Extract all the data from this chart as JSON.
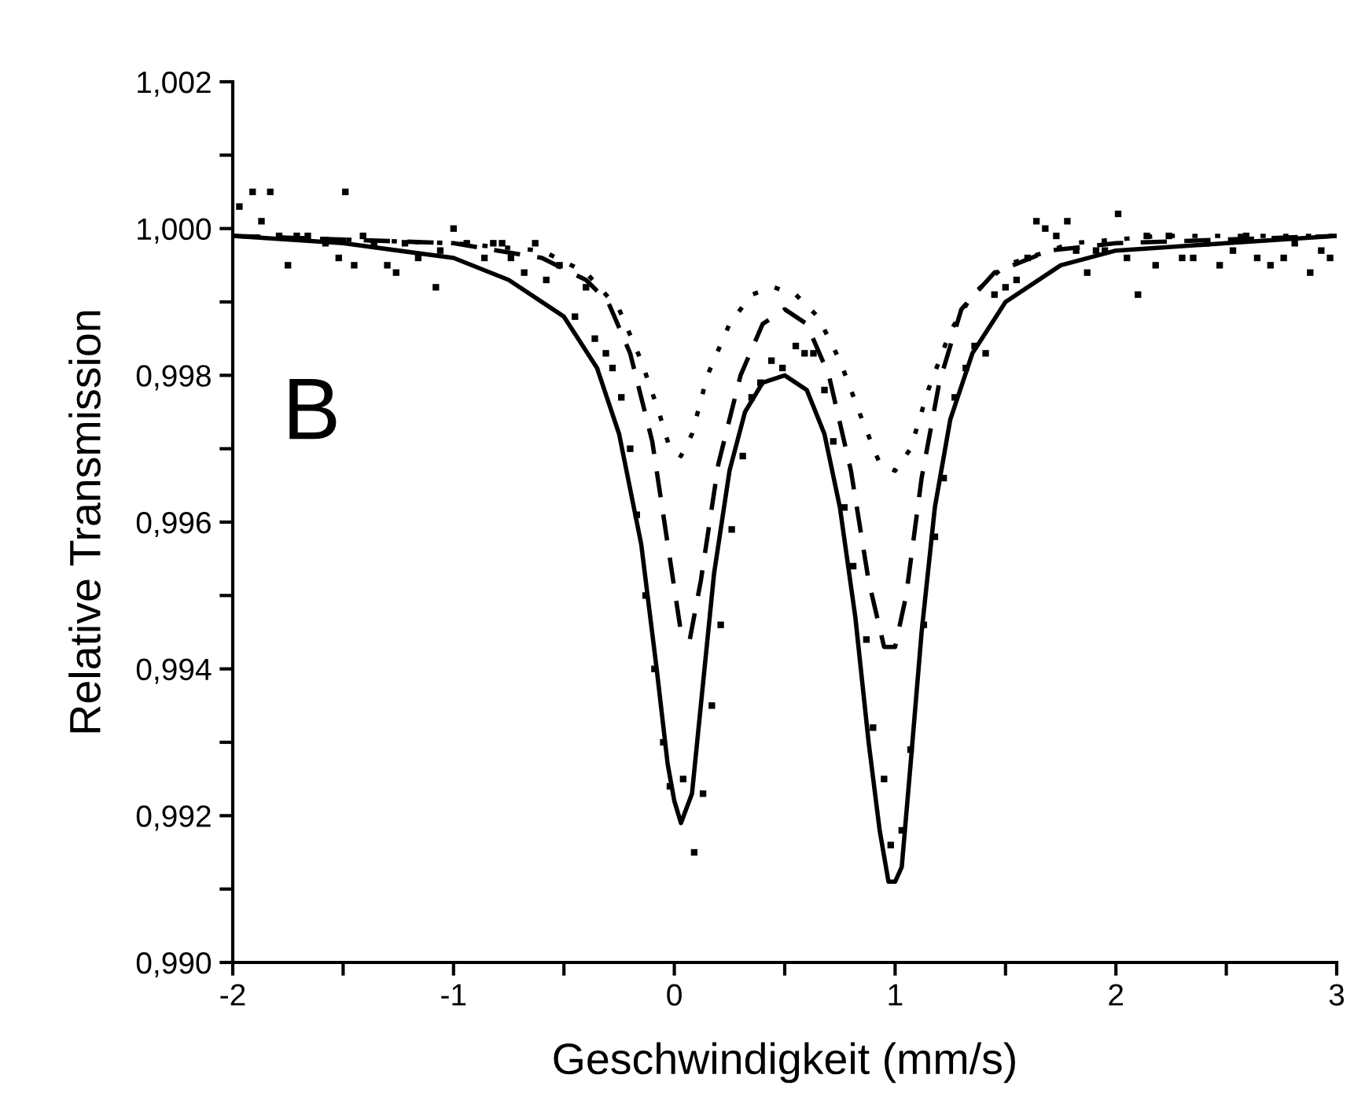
{
  "chart_data": {
    "type": "line",
    "xlabel": "Geschwindigkeit (mm/s)",
    "ylabel": "Relative Transmission",
    "annotations": [
      "B"
    ],
    "xlim": [
      -2,
      3
    ],
    "ylim": [
      0.99,
      1.002
    ],
    "xticks": [
      -2,
      {
        "value": -1.5,
        "label": null
      },
      -1,
      {
        "value": -0.5,
        "label": null
      },
      0,
      {
        "value": 0.5,
        "label": null
      },
      1,
      {
        "value": 1.5,
        "label": null
      },
      2,
      {
        "value": 2.5,
        "label": null
      },
      3
    ],
    "yticks": [
      {
        "value": 0.99,
        "label": "0,990"
      },
      {
        "value": 0.991,
        "label": null
      },
      {
        "value": 0.992,
        "label": "0,992"
      },
      {
        "value": 0.993,
        "label": null
      },
      {
        "value": 0.994,
        "label": "0,994"
      },
      {
        "value": 0.995,
        "label": null
      },
      {
        "value": 0.996,
        "label": "0,996"
      },
      {
        "value": 0.997,
        "label": null
      },
      {
        "value": 0.998,
        "label": "0,998"
      },
      {
        "value": 0.999,
        "label": null
      },
      {
        "value": 1.0,
        "label": "1,000"
      },
      {
        "value": 1.001,
        "label": null
      },
      {
        "value": 1.002,
        "label": "1,002"
      }
    ],
    "grid": false,
    "legend": false,
    "series": [
      {
        "type": "scatter",
        "marker": "square",
        "color": "#000000",
        "x": [
          -1.97,
          -1.91,
          -1.87,
          -1.83,
          -1.79,
          -1.75,
          -1.71,
          -1.66,
          -1.58,
          -1.52,
          -1.49,
          -1.45,
          -1.41,
          -1.36,
          -1.3,
          -1.26,
          -1.22,
          -1.16,
          -1.08,
          -1.06,
          -1.0,
          -0.94,
          -0.86,
          -0.82,
          -0.78,
          -0.74,
          -0.68,
          -0.63,
          -0.58,
          -0.52,
          -0.45,
          -0.4,
          -0.36,
          -0.31,
          -0.28,
          -0.24,
          -0.2,
          -0.17,
          -0.13,
          -0.09,
          -0.05,
          -0.02,
          0.04,
          0.09,
          0.13,
          0.17,
          0.21,
          0.26,
          0.31,
          0.35,
          0.39,
          0.44,
          0.49,
          0.55,
          0.59,
          0.63,
          0.68,
          0.72,
          0.77,
          0.81,
          0.87,
          0.9,
          0.95,
          0.98,
          1.03,
          1.07,
          1.13,
          1.18,
          1.22,
          1.27,
          1.32,
          1.36,
          1.41,
          1.45,
          1.5,
          1.55,
          1.6,
          1.64,
          1.68,
          1.73,
          1.78,
          1.82,
          1.87,
          1.91,
          1.95,
          2.01,
          2.05,
          2.1,
          2.14,
          2.18,
          2.24,
          2.3,
          2.35,
          2.41,
          2.47,
          2.53,
          2.59,
          2.64,
          2.7,
          2.76,
          2.81,
          2.88,
          2.93,
          2.97
        ],
        "values": [
          1.0003,
          1.0005,
          1.0001,
          1.0005,
          0.9999,
          0.9995,
          0.9999,
          0.9999,
          0.9998,
          0.9996,
          1.0005,
          0.9995,
          0.9999,
          0.9998,
          0.9995,
          0.9994,
          0.9998,
          0.9996,
          0.9992,
          0.9997,
          1.0,
          0.9998,
          0.9996,
          0.9998,
          0.9998,
          0.9996,
          0.9994,
          0.9998,
          0.9993,
          0.9995,
          0.9988,
          0.9992,
          0.9985,
          0.9983,
          0.9981,
          0.9977,
          0.997,
          0.9961,
          0.995,
          0.994,
          0.993,
          0.9924,
          0.9925,
          0.9915,
          0.9923,
          0.9935,
          0.9946,
          0.9959,
          0.9969,
          0.9977,
          0.9979,
          0.9982,
          0.9981,
          0.9984,
          0.9983,
          0.9983,
          0.9978,
          0.9971,
          0.9962,
          0.9954,
          0.9944,
          0.9932,
          0.9925,
          0.9916,
          0.9918,
          0.9929,
          0.9946,
          0.9958,
          0.9966,
          0.9977,
          0.9981,
          0.9984,
          0.9983,
          0.9991,
          0.9992,
          0.9993,
          0.9996,
          1.0001,
          1.0,
          0.9999,
          1.0001,
          0.9997,
          0.9994,
          0.9997,
          0.9997,
          1.0002,
          0.9996,
          0.9991,
          0.9999,
          0.9995,
          0.9999,
          0.9996,
          0.9996,
          0.9998,
          0.9995,
          0.9997,
          0.9999,
          0.9996,
          0.9995,
          0.9996,
          0.9998,
          0.9994,
          0.9997,
          0.9996
        ]
      },
      {
        "line_style": "solid",
        "color": "#000000",
        "x": [
          -2,
          -1.5,
          -1,
          -0.75,
          -0.5,
          -0.35,
          -0.25,
          -0.15,
          -0.08,
          -0.03,
          0.0,
          0.03,
          0.08,
          0.12,
          0.18,
          0.25,
          0.32,
          0.4,
          0.5,
          0.6,
          0.68,
          0.75,
          0.82,
          0.88,
          0.93,
          0.97,
          1.0,
          1.03,
          1.07,
          1.12,
          1.18,
          1.25,
          1.35,
          1.5,
          1.75,
          2.0,
          2.5,
          3.0
        ],
        "values": [
          0.9999,
          0.9998,
          0.9996,
          0.9993,
          0.9988,
          0.9981,
          0.9972,
          0.9957,
          0.994,
          0.9927,
          0.9922,
          0.9919,
          0.9923,
          0.9935,
          0.9953,
          0.9967,
          0.9975,
          0.9979,
          0.998,
          0.9978,
          0.9972,
          0.9962,
          0.9947,
          0.993,
          0.9918,
          0.9911,
          0.9911,
          0.9913,
          0.9927,
          0.9945,
          0.9962,
          0.9974,
          0.9983,
          0.999,
          0.9995,
          0.9997,
          0.9998,
          0.9999
        ]
      },
      {
        "line_style": "dashed",
        "color": "#000000",
        "x": [
          -2,
          -1,
          -0.6,
          -0.4,
          -0.3,
          -0.2,
          -0.1,
          -0.02,
          0.03,
          0.07,
          0.12,
          0.2,
          0.3,
          0.4,
          0.5,
          0.6,
          0.7,
          0.8,
          0.88,
          0.95,
          1.0,
          1.05,
          1.12,
          1.2,
          1.3,
          1.45,
          1.7,
          2,
          3
        ],
        "values": [
          0.9999,
          0.9998,
          0.9996,
          0.9993,
          0.999,
          0.9983,
          0.9971,
          0.9955,
          0.9945,
          0.9944,
          0.9952,
          0.9968,
          0.998,
          0.9987,
          0.9989,
          0.9987,
          0.998,
          0.9967,
          0.9952,
          0.9943,
          0.9943,
          0.995,
          0.9966,
          0.9979,
          0.9989,
          0.9994,
          0.9997,
          0.9998,
          0.9999
        ]
      },
      {
        "line_style": "dotted",
        "color": "#000000",
        "x": [
          -2,
          -1,
          -0.6,
          -0.4,
          -0.25,
          -0.15,
          -0.07,
          -0.02,
          0.03,
          0.08,
          0.15,
          0.25,
          0.35,
          0.45,
          0.55,
          0.65,
          0.75,
          0.85,
          0.93,
          1.0,
          1.07,
          1.15,
          1.25,
          1.35,
          1.5,
          1.8,
          2.2,
          3
        ],
        "values": [
          0.9999,
          0.9998,
          0.9997,
          0.9994,
          0.9989,
          0.9982,
          0.9975,
          0.997,
          0.9969,
          0.9972,
          0.998,
          0.9987,
          0.9991,
          0.9992,
          0.9991,
          0.9988,
          0.9982,
          0.9974,
          0.9968,
          0.9967,
          0.997,
          0.9978,
          0.9986,
          0.9991,
          0.9995,
          0.9998,
          0.9999,
          0.9999
        ]
      }
    ]
  }
}
